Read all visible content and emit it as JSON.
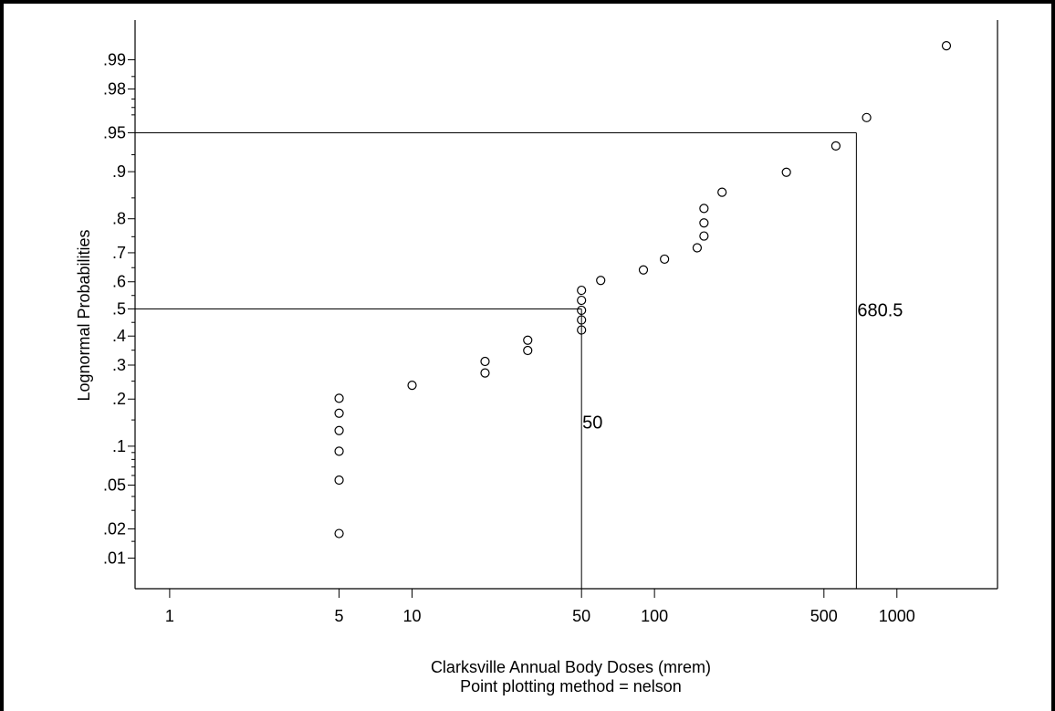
{
  "chart_data": {
    "type": "scatter",
    "x_scale": "log",
    "y_scale": "normal-probability",
    "xlabel": "Clarksville Annual Body Doses (mrem)",
    "subtitle": "Point plotting method = nelson",
    "ylabel": "Lognormal Probabilities",
    "x_ticks": [
      1,
      5,
      10,
      50,
      100,
      500,
      1000
    ],
    "x_tick_labels": [
      "1",
      "5",
      "10",
      "50",
      "100",
      "500",
      "1000"
    ],
    "y_ticks": [
      0.01,
      0.02,
      0.05,
      0.1,
      0.2,
      0.3,
      0.4,
      0.5,
      0.6,
      0.7,
      0.8,
      0.9,
      0.95,
      0.98,
      0.99
    ],
    "y_tick_labels": [
      ".01",
      ".02",
      ".05",
      ".1",
      ".2",
      ".3",
      ".4",
      ".5",
      ".6",
      ".7",
      ".8",
      ".9",
      ".95",
      ".98",
      ".99"
    ],
    "xlim": [
      0.72,
      2600
    ],
    "ylim": [
      0.0045,
      0.9965
    ],
    "grid": false,
    "marker": "open-circle",
    "points": [
      {
        "x": 5,
        "y": 0.018
      },
      {
        "x": 5,
        "y": 0.055
      },
      {
        "x": 5,
        "y": 0.092
      },
      {
        "x": 5,
        "y": 0.128
      },
      {
        "x": 5,
        "y": 0.165
      },
      {
        "x": 5,
        "y": 0.202
      },
      {
        "x": 10,
        "y": 0.238
      },
      {
        "x": 20,
        "y": 0.275
      },
      {
        "x": 20,
        "y": 0.312
      },
      {
        "x": 30,
        "y": 0.349
      },
      {
        "x": 30,
        "y": 0.385
      },
      {
        "x": 50,
        "y": 0.422
      },
      {
        "x": 50,
        "y": 0.459
      },
      {
        "x": 50,
        "y": 0.495
      },
      {
        "x": 50,
        "y": 0.532
      },
      {
        "x": 50,
        "y": 0.569
      },
      {
        "x": 60,
        "y": 0.605
      },
      {
        "x": 90,
        "y": 0.642
      },
      {
        "x": 110,
        "y": 0.679
      },
      {
        "x": 150,
        "y": 0.716
      },
      {
        "x": 160,
        "y": 0.752
      },
      {
        "x": 160,
        "y": 0.789
      },
      {
        "x": 160,
        "y": 0.826
      },
      {
        "x": 190,
        "y": 0.862
      },
      {
        "x": 350,
        "y": 0.899
      },
      {
        "x": 560,
        "y": 0.936
      },
      {
        "x": 750,
        "y": 0.963
      },
      {
        "x": 1600,
        "y": 0.993
      }
    ],
    "reference_lines": [
      {
        "probability": 0.5,
        "value": 50,
        "label": "50"
      },
      {
        "probability": 0.95,
        "value": 680.5,
        "label": "680.5"
      }
    ]
  }
}
